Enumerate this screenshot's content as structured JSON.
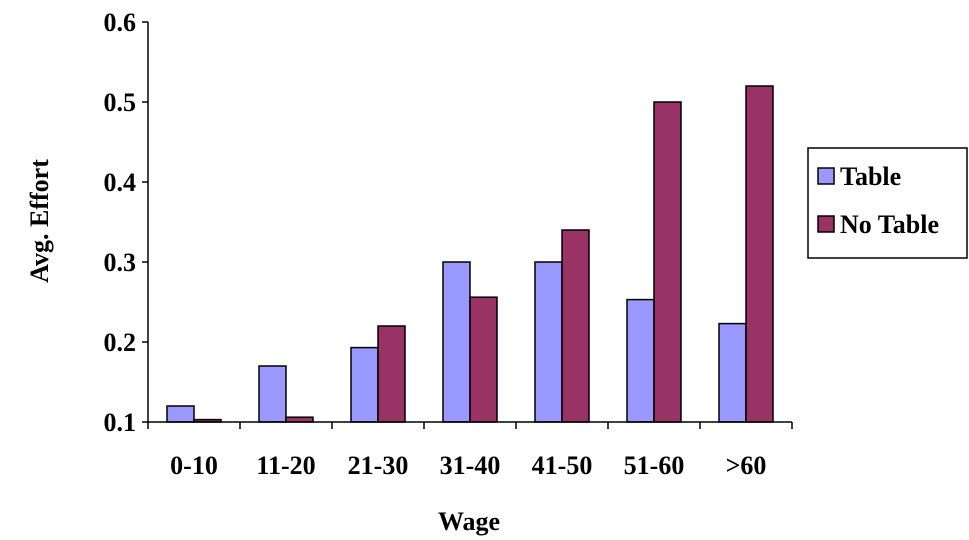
{
  "chart_data": {
    "type": "bar",
    "title": "",
    "xlabel": "Wage",
    "ylabel": "Avg. Effort",
    "categories": [
      "0-10",
      "11-20",
      "21-30",
      "31-40",
      "41-50",
      "51-60",
      ">60"
    ],
    "ylim": [
      0.1,
      0.6
    ],
    "yticks": [
      "0.1",
      "0.2",
      "0.3",
      "0.4",
      "0.5",
      "0.6"
    ],
    "grid": false,
    "legend_position": "right",
    "series": [
      {
        "name": "Table",
        "color": "#9999ff",
        "values": [
          0.12,
          0.17,
          0.193,
          0.3,
          0.3,
          0.253,
          0.223
        ]
      },
      {
        "name": "No Table",
        "color": "#993366",
        "values": [
          0.103,
          0.106,
          0.22,
          0.256,
          0.34,
          0.5,
          0.52
        ]
      }
    ]
  }
}
